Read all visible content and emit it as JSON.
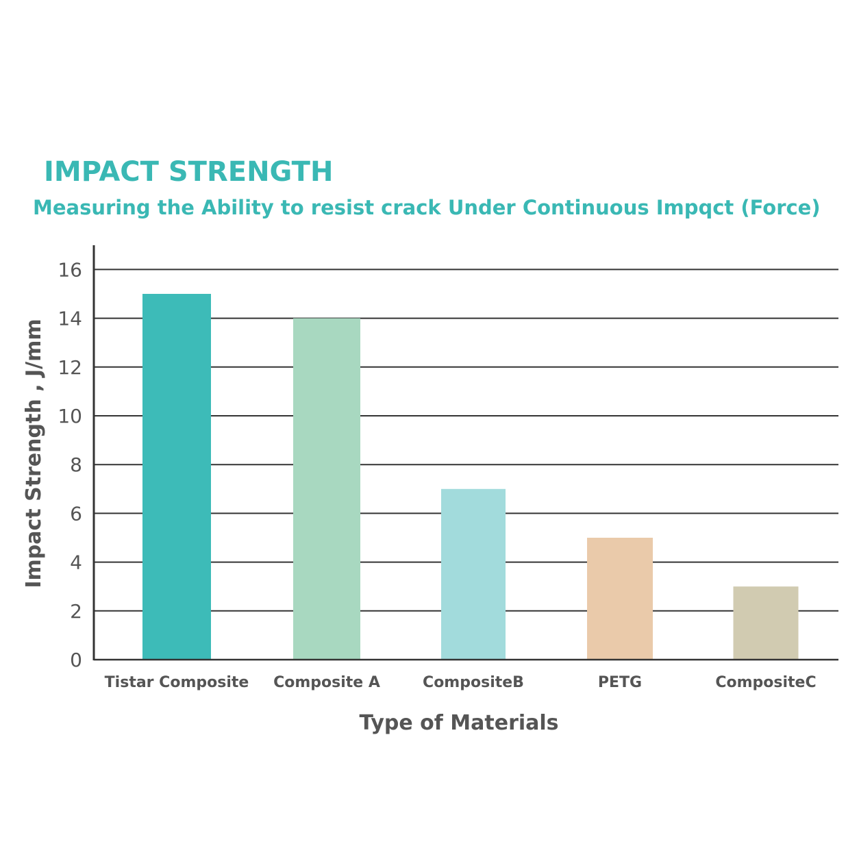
{
  "chart_data": {
    "type": "bar",
    "title": "IMPACT STRENGTH",
    "subtitle": "Measuring the Ability to resist crack Under Continuous Impqct (Force)",
    "xlabel": "Type of Materials",
    "ylabel": "Impact Strength , J/mm",
    "categories": [
      "Tistar Composite",
      "Composite A",
      "CompositeB",
      "PETG",
      "CompositeC"
    ],
    "values": [
      15,
      14,
      7,
      5,
      3
    ],
    "colors": [
      "#3dbbb8",
      "#a8d8c0",
      "#a2dbdc",
      "#eacaaa",
      "#d1cbb1"
    ],
    "ylim": [
      0,
      17
    ],
    "yticks": [
      0,
      2,
      4,
      6,
      8,
      10,
      12,
      14,
      16
    ],
    "grid": true,
    "legend": "none"
  }
}
